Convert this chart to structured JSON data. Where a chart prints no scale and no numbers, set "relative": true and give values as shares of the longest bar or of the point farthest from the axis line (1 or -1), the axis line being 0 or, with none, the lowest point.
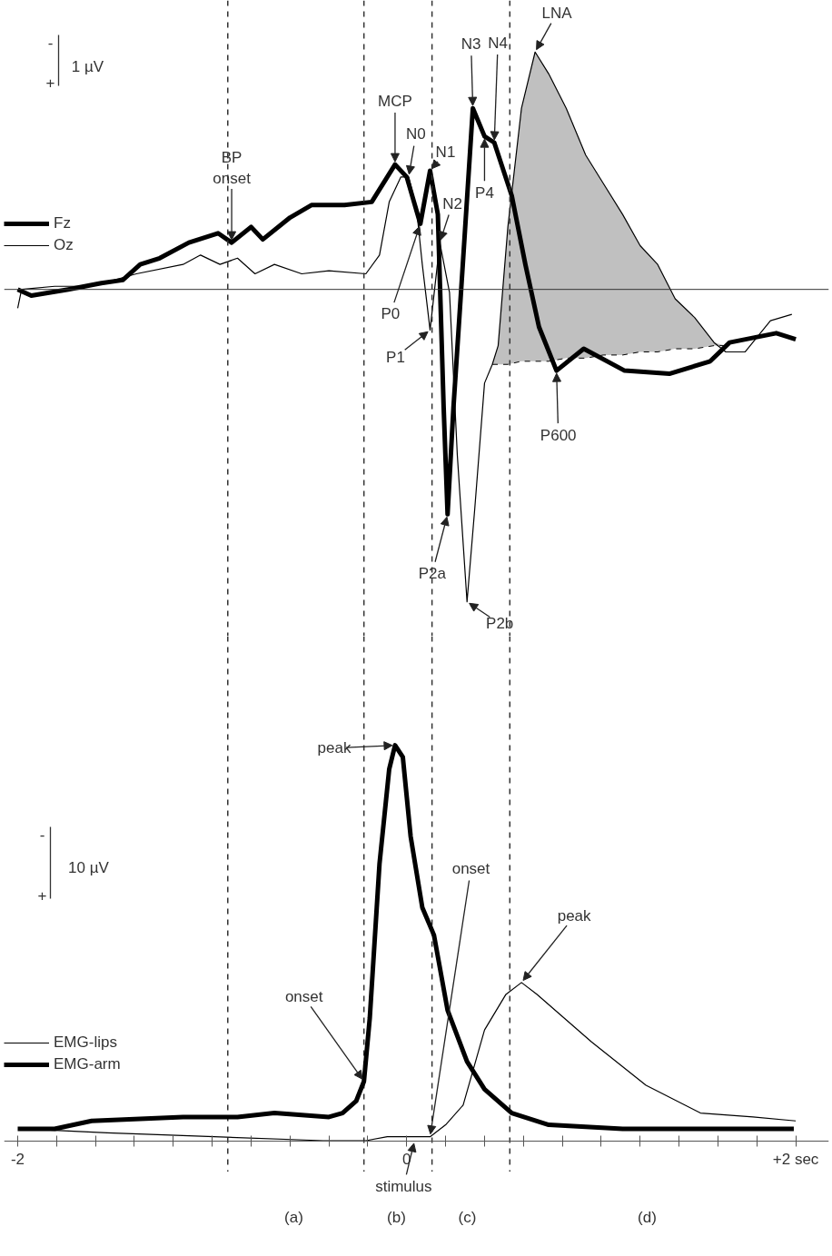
{
  "chart_data": [
    {
      "type": "line",
      "relative": true,
      "xlim": [
        -2.07,
        2.17
      ],
      "tick_labels": false,
      "legend": "left",
      "grid": false,
      "series": [
        {
          "name": "Fz",
          "color": "#000000",
          "x": [
            -2.0,
            -1.93,
            -1.74,
            -1.57,
            -1.46,
            -1.37,
            -1.27,
            -1.12,
            -0.97,
            -0.9,
            -0.8,
            -0.74,
            -0.6,
            -0.49,
            -0.32,
            -0.18,
            -0.06,
            0.0,
            0.07,
            0.12,
            0.16,
            0.19,
            0.21,
            0.24,
            0.28,
            0.34,
            0.4,
            0.45,
            0.54,
            0.61,
            0.68,
            0.77,
            0.91,
            1.12,
            1.35,
            1.56,
            1.66,
            1.9,
            2.0
          ],
          "values": [
            0,
            -0.02,
            0,
            0.02,
            0.03,
            0.08,
            0.1,
            0.15,
            0.18,
            0.15,
            0.2,
            0.16,
            0.23,
            0.27,
            0.27,
            0.28,
            0.4,
            0.36,
            0.21,
            0.38,
            0.24,
            -0.38,
            -0.72,
            -0.38,
            0,
            0.58,
            0.49,
            0.47,
            0.3,
            0.08,
            -0.12,
            -0.26,
            -0.19,
            -0.26,
            -0.27,
            -0.23,
            -0.17,
            -0.14,
            -0.16
          ]
        },
        {
          "name": "Oz",
          "color": "#000000",
          "x": [
            -2.0,
            -1.98,
            -1.81,
            -1.62,
            -1.39,
            -1.15,
            -1.06,
            -0.96,
            -0.87,
            -0.78,
            -0.68,
            -0.54,
            -0.4,
            -0.21,
            -0.14,
            -0.09,
            -0.03,
            0.01,
            0.05,
            0.08,
            0.12,
            0.17,
            0.22,
            0.26,
            0.31,
            0.35,
            0.4,
            0.44,
            0.47,
            0.52,
            0.59,
            0.66,
            0.73,
            0.82,
            0.92,
            1.01,
            1.11,
            1.2,
            1.29,
            1.38,
            1.48,
            1.58,
            1.64,
            1.74,
            1.87,
            1.98
          ],
          "values": [
            -0.06,
            0,
            0.01,
            0.01,
            0.05,
            0.08,
            0.11,
            0.08,
            0.1,
            0.05,
            0.08,
            0.05,
            0.06,
            0.05,
            0.11,
            0.28,
            0.36,
            0.36,
            0.26,
            0.08,
            -0.13,
            0.15,
            -0.01,
            -0.53,
            -1.0,
            -0.7,
            -0.3,
            -0.24,
            -0.18,
            0.2,
            0.58,
            0.76,
            0.69,
            0.58,
            0.43,
            0.34,
            0.24,
            0.14,
            0.08,
            -0.03,
            -0.09,
            -0.17,
            -0.2,
            -0.2,
            -0.1,
            -0.08
          ]
        },
        {
          "color": "#000000",
          "line_style": "dashed",
          "x": [
            0.44,
            0.47,
            0.52,
            0.59,
            0.66,
            0.73,
            0.82,
            0.92,
            1.01,
            1.11,
            1.2,
            1.29,
            1.38,
            1.48,
            1.58,
            1.64
          ],
          "values": [
            -0.24,
            -0.24,
            -0.24,
            -0.23,
            -0.23,
            -0.23,
            -0.22,
            -0.22,
            -0.21,
            -0.21,
            -0.2,
            -0.2,
            -0.19,
            -0.19,
            -0.18,
            -0.18
          ],
          "lower": [
            -0.24,
            -0.24,
            -0.24,
            -0.23,
            -0.23,
            -0.23,
            -0.22,
            -0.22,
            -0.21,
            -0.21,
            -0.2,
            -0.2,
            -0.19,
            -0.19,
            -0.18,
            -0.18
          ],
          "upper": [
            -0.24,
            -0.18,
            0.2,
            0.58,
            0.76,
            0.69,
            0.58,
            0.43,
            0.34,
            0.24,
            0.14,
            0.08,
            -0.03,
            -0.09,
            -0.17,
            -0.18
          ]
        }
      ],
      "ref_lines": [
        {
          "axis": "x",
          "value": -0.92,
          "line_style": "dashed"
        },
        {
          "axis": "x",
          "value": -0.22,
          "line_style": "dashed"
        },
        {
          "axis": "x",
          "value": 0.13,
          "line_style": "dashed"
        },
        {
          "axis": "x",
          "value": 0.53,
          "line_style": "dashed"
        },
        {
          "axis": "y",
          "value": 0,
          "line_style": "solid"
        }
      ],
      "annotations": [
        "-",
        "+",
        "1 µV",
        {
          "text": "BP\nonset",
          "x": -0.9,
          "y": 0.15
        },
        {
          "text": "MCP",
          "x": -0.06,
          "y": 0.4
        },
        {
          "text": "N0",
          "x": 0.01,
          "y": 0.36
        },
        {
          "text": "N1",
          "x": 0.12,
          "y": 0.38
        },
        {
          "text": "N2",
          "x": 0.17,
          "y": 0.15
        },
        {
          "text": "P0",
          "x": 0.07,
          "y": 0.21
        },
        {
          "text": "P1",
          "x": 0.12,
          "y": -0.13
        },
        {
          "text": "P2a",
          "x": 0.21,
          "y": -0.72
        },
        {
          "text": "P2b",
          "x": 0.31,
          "y": -1.0
        },
        {
          "text": "N3",
          "x": 0.34,
          "y": 0.58
        },
        {
          "text": "N4",
          "x": 0.45,
          "y": 0.47
        },
        {
          "text": "P4",
          "x": 0.4,
          "y": 0.49
        },
        {
          "text": "LNA",
          "x": 0.66,
          "y": 0.76
        },
        {
          "text": "P600",
          "x": 0.77,
          "y": -0.26
        }
      ]
    },
    {
      "type": "line",
      "relative": true,
      "xlim": [
        -2.07,
        2.17
      ],
      "legend": "bottom left",
      "grid": false,
      "xticks": [
        {
          "value": -2,
          "label": "-2"
        },
        {
          "value": -1.8,
          "label": null
        },
        {
          "value": -1.6,
          "label": null
        },
        {
          "value": -1.4,
          "label": null
        },
        {
          "value": -1.2,
          "label": null
        },
        {
          "value": -1,
          "label": null
        },
        {
          "value": -0.8,
          "label": null
        },
        {
          "value": -0.6,
          "label": null
        },
        {
          "value": -0.4,
          "label": null
        },
        {
          "value": -0.2,
          "label": null
        },
        0,
        {
          "value": 0.2,
          "label": null
        },
        {
          "value": 0.4,
          "label": null
        },
        {
          "value": 0.6,
          "label": null
        },
        {
          "value": 0.8,
          "label": null
        },
        {
          "value": 1,
          "label": null
        },
        {
          "value": 1.2,
          "label": null
        },
        {
          "value": 1.4,
          "label": null
        },
        {
          "value": 1.6,
          "label": null
        },
        {
          "value": 1.8,
          "label": null
        },
        {
          "value": 2,
          "label": "+2 sec"
        }
      ],
      "series": [
        {
          "name": "EMG-lips",
          "color": "#000000",
          "x": [
            -1.98,
            -1.54,
            -0.99,
            -0.43,
            -0.21,
            -0.1,
            0.01,
            0.12,
            0.2,
            0.29,
            0.4,
            0.51,
            0.59,
            0.67,
            0.95,
            1.23,
            1.51,
            1.78,
            2.0
          ],
          "values": [
            0.03,
            0.02,
            0.01,
            0.0,
            0.0,
            0.01,
            0.01,
            0.01,
            0.04,
            0.09,
            0.28,
            0.37,
            0.4,
            0.37,
            0.25,
            0.14,
            0.07,
            0.06,
            0.05
          ]
        },
        {
          "name": "EMG-arm",
          "color": "#000000",
          "x": [
            -2.0,
            -1.81,
            -1.62,
            -1.15,
            -0.87,
            -0.68,
            -0.4,
            -0.33,
            -0.26,
            -0.22,
            -0.19,
            -0.14,
            -0.09,
            -0.06,
            -0.02,
            0.02,
            0.08,
            0.14,
            0.21,
            0.31,
            0.4,
            0.54,
            0.73,
            1.11,
            1.48,
            1.76,
            1.99
          ],
          "values": [
            0.03,
            0.03,
            0.05,
            0.06,
            0.06,
            0.07,
            0.06,
            0.07,
            0.1,
            0.15,
            0.31,
            0.7,
            0.94,
            1.0,
            0.97,
            0.77,
            0.59,
            0.52,
            0.33,
            0.2,
            0.13,
            0.07,
            0.04,
            0.03,
            0.03,
            0.03,
            0.03
          ]
        }
      ],
      "ref_lines": [
        {
          "axis": "x",
          "value": -0.92,
          "line_style": "dashed"
        },
        {
          "axis": "x",
          "value": -0.22,
          "line_style": "dashed"
        },
        {
          "axis": "x",
          "value": 0.13,
          "line_style": "dashed"
        },
        {
          "axis": "x",
          "value": 0.53,
          "line_style": "dashed"
        }
      ],
      "annotations": [
        "-",
        "+",
        "10 µV",
        "(a)",
        "(b)",
        "(c)",
        "(d)",
        {
          "text": "peak",
          "x": -0.06,
          "y": 1.0
        },
        {
          "text": "onset",
          "x": -0.22,
          "y": 0.15
        },
        {
          "text": "onset",
          "x": 0.12,
          "y": 0.01
        },
        {
          "text": "peak",
          "x": 0.59,
          "y": 0.4
        },
        {
          "text": "stimulus",
          "x": 0.04,
          "y": 0
        }
      ]
    }
  ]
}
